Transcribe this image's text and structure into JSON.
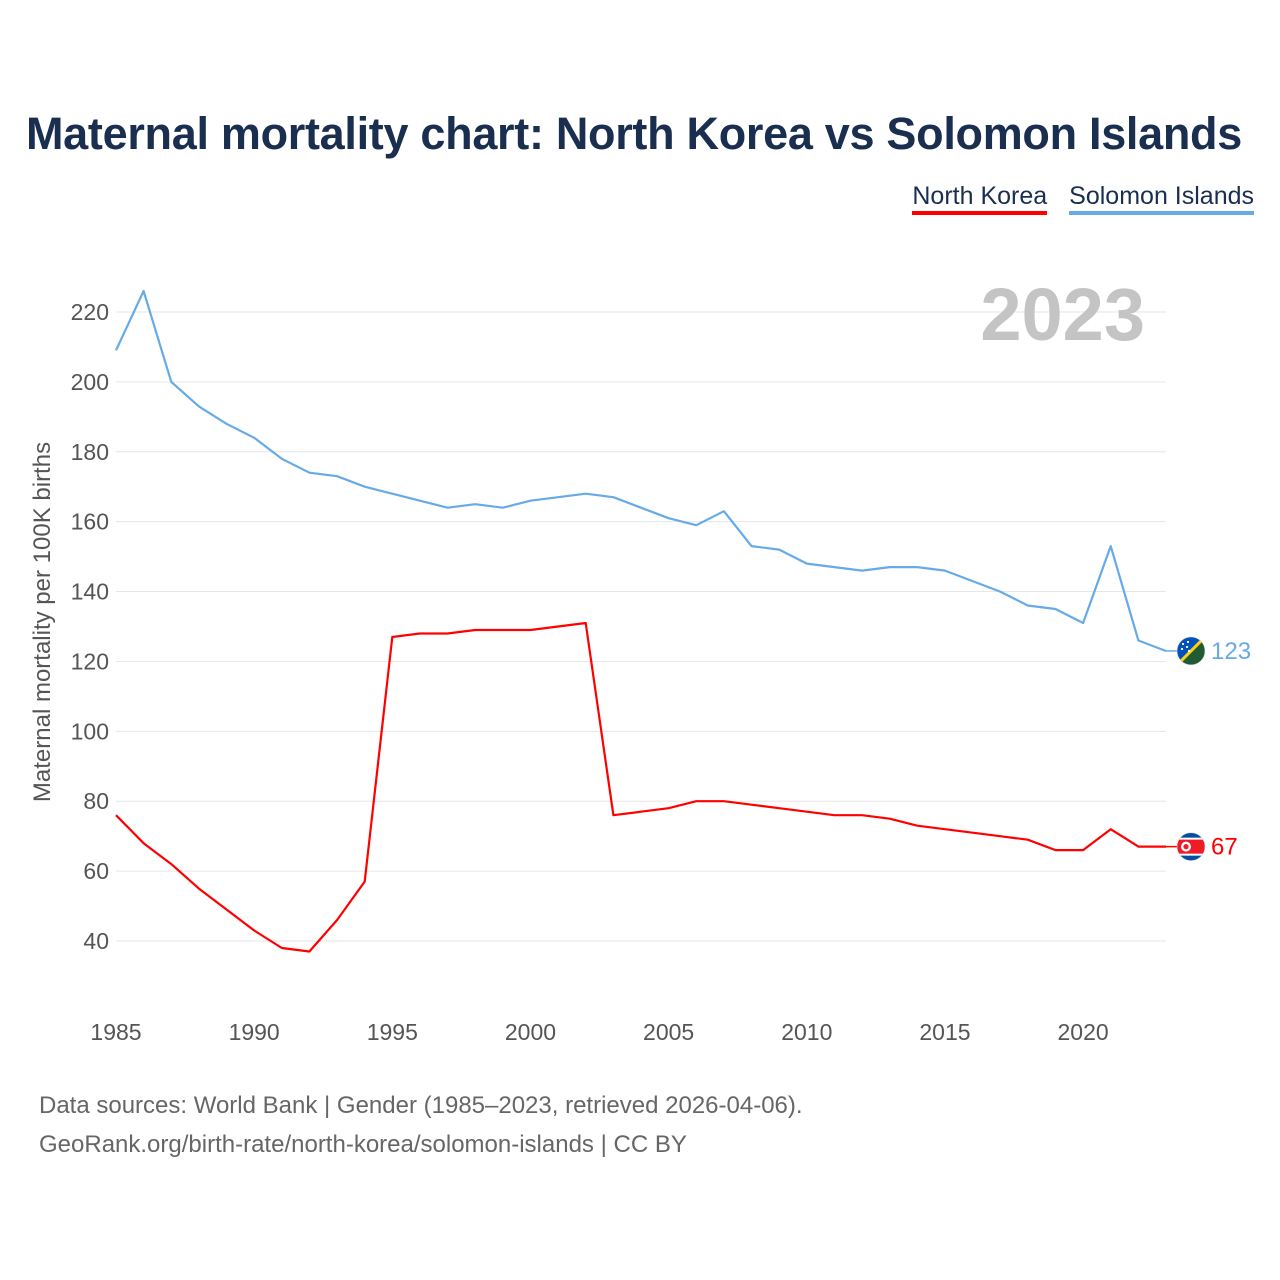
{
  "title": "Maternal mortality chart: North Korea vs Solomon Islands",
  "legend": [
    {
      "label": "North Korea",
      "color": "#ff0000"
    },
    {
      "label": "Solomon Islands",
      "color": "#66aae8"
    }
  ],
  "year_watermark": "2023",
  "source": {
    "line1": "Data sources: World Bank | Gender (1985–2023, retrieved 2026-04-06).",
    "line2": "GeoRank.org/birth-rate/north-korea/solomon-islands | CC BY"
  },
  "flags": {
    "north_korea": {
      "blue": "#024fa2",
      "white": "#ffffff",
      "red": "#ed1c27"
    },
    "solomon_islands": {
      "blue": "#0051ba",
      "green": "#215b33",
      "yellow": "#fcd116"
    }
  },
  "chart_data": {
    "type": "line",
    "title": "Maternal mortality chart: North Korea vs Solomon Islands",
    "xlabel": "",
    "ylabel": "Maternal mortality per 100K births",
    "xlim": [
      1985,
      2023
    ],
    "ylim": [
      25,
      232
    ],
    "x_ticks": [
      1985,
      1990,
      1995,
      2000,
      2005,
      2010,
      2015,
      2020
    ],
    "y_ticks": [
      40,
      60,
      80,
      100,
      120,
      140,
      160,
      180,
      200,
      220
    ],
    "grid": true,
    "legend_position": "top-right",
    "x": [
      1985,
      1986,
      1987,
      1988,
      1989,
      1990,
      1991,
      1992,
      1993,
      1994,
      1995,
      1996,
      1997,
      1998,
      1999,
      2000,
      2001,
      2002,
      2003,
      2004,
      2005,
      2006,
      2007,
      2008,
      2009,
      2010,
      2011,
      2012,
      2013,
      2014,
      2015,
      2016,
      2017,
      2018,
      2019,
      2020,
      2021,
      2022,
      2023
    ],
    "series": [
      {
        "name": "Solomon Islands",
        "color": "#66aae8",
        "end_label": "123",
        "values": [
          209,
          226,
          200,
          193,
          188,
          184,
          178,
          174,
          173,
          170,
          168,
          166,
          164,
          165,
          164,
          166,
          167,
          168,
          167,
          164,
          161,
          159,
          163,
          153,
          152,
          148,
          147,
          146,
          147,
          147,
          146,
          143,
          140,
          136,
          135,
          131,
          153,
          126,
          123
        ]
      },
      {
        "name": "North Korea",
        "color": "#ff0000",
        "end_label": "67",
        "values": [
          76,
          68,
          62,
          55,
          49,
          43,
          38,
          37,
          46,
          57,
          127,
          128,
          128,
          129,
          129,
          129,
          130,
          131,
          76,
          77,
          78,
          80,
          80,
          79,
          78,
          77,
          76,
          76,
          75,
          73,
          72,
          71,
          70,
          69,
          66,
          66,
          72,
          67,
          67
        ]
      }
    ]
  }
}
